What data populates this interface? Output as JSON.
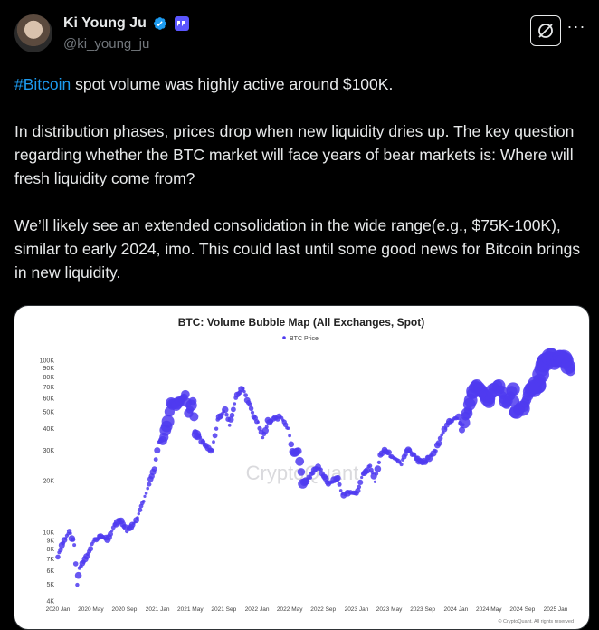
{
  "author": {
    "name": "Ki Young Ju",
    "handle": "@ki_young_ju",
    "verified_color": "#1d9bf0",
    "affiliate_badge_color": "#5b56ff"
  },
  "actions": {
    "grok_icon": "grok-icon",
    "more_icon": "more-icon",
    "more_label": "···"
  },
  "tweet": {
    "hashtag": "#Bitcoin",
    "line1_rest": " spot volume was highly active around $100K.",
    "para2": "In distribution phases, prices drop when new liquidity dries up. The key question regarding whether the BTC market will face years of bear markets is: Where will fresh liquidity come from?",
    "para3": "We’ll likely see an extended consolidation in the wide range(e.g., $75K-100K), similar to early 2024, imo. This could last until some good news for Bitcoin brings in new liquidity."
  },
  "chart_data": {
    "type": "scatter",
    "title": "BTC: Volume Bubble Map (All Exchanges, Spot)",
    "legend": "BTC Price",
    "legend_position": "top-center",
    "watermark": "CryptoQuant",
    "footer": "© CryptoQuant. All rights reserved",
    "y_scale": "log",
    "ylim": [
      4000,
      110000
    ],
    "y_ticks": [
      {
        "v": 100000,
        "label": "100K"
      },
      {
        "v": 90000,
        "label": "90K"
      },
      {
        "v": 80000,
        "label": "80K"
      },
      {
        "v": 70000,
        "label": "70K"
      },
      {
        "v": 60000,
        "label": "60K"
      },
      {
        "v": 50000,
        "label": "50K"
      },
      {
        "v": 40000,
        "label": "40K"
      },
      {
        "v": 30000,
        "label": "30K"
      },
      {
        "v": 20000,
        "label": "20K"
      },
      {
        "v": 10000,
        "label": "10K"
      },
      {
        "v": 9000,
        "label": "9K"
      },
      {
        "v": 8000,
        "label": "8K"
      },
      {
        "v": 7000,
        "label": "7K"
      },
      {
        "v": 6000,
        "label": "6K"
      },
      {
        "v": 5000,
        "label": "5K"
      },
      {
        "v": 4000,
        "label": "4K"
      }
    ],
    "xlim": [
      "2020-01-01",
      "2025-03-15"
    ],
    "x_ticks": [
      "2020 Jan",
      "2020 May",
      "2020 Sep",
      "2021 Jan",
      "2021 May",
      "2021 Sep",
      "2022 Jan",
      "2022 May",
      "2022 Sep",
      "2023 Jan",
      "2023 May",
      "2023 Sep",
      "2024 Jan",
      "2024 May",
      "2024 Sep",
      "2025 Jan"
    ],
    "x_tick_dates": [
      "2020-01-01",
      "2020-05-01",
      "2020-09-01",
      "2021-01-01",
      "2021-05-01",
      "2021-09-01",
      "2022-01-01",
      "2022-05-01",
      "2022-09-01",
      "2023-01-01",
      "2023-05-01",
      "2023-09-01",
      "2024-01-01",
      "2024-05-01",
      "2024-09-01",
      "2025-01-01"
    ],
    "grid": false,
    "color": "#4f3bf0",
    "series": [
      {
        "name": "BTC Price",
        "points": [
          [
            "2020-01-01",
            7200
          ],
          [
            "2020-01-20",
            8700
          ],
          [
            "2020-02-12",
            10200
          ],
          [
            "2020-03-01",
            8600
          ],
          [
            "2020-03-12",
            5000
          ],
          [
            "2020-03-20",
            6200
          ],
          [
            "2020-04-10",
            6900
          ],
          [
            "2020-05-10",
            8800
          ],
          [
            "2020-06-01",
            9500
          ],
          [
            "2020-07-01",
            9200
          ],
          [
            "2020-07-28",
            11000
          ],
          [
            "2020-08-15",
            11800
          ],
          [
            "2020-09-10",
            10300
          ],
          [
            "2020-10-10",
            11300
          ],
          [
            "2020-10-28",
            13400
          ],
          [
            "2020-11-15",
            16000
          ],
          [
            "2020-12-01",
            19000
          ],
          [
            "2020-12-20",
            23500
          ],
          [
            "2021-01-05",
            33000
          ],
          [
            "2021-01-20",
            34000
          ],
          [
            "2021-02-08",
            44000
          ],
          [
            "2021-02-20",
            57000
          ],
          [
            "2021-03-10",
            55000
          ],
          [
            "2021-04-13",
            63000
          ],
          [
            "2021-04-25",
            50000
          ],
          [
            "2021-05-10",
            57000
          ],
          [
            "2021-05-19",
            38000
          ],
          [
            "2021-06-01",
            36000
          ],
          [
            "2021-06-22",
            32000
          ],
          [
            "2021-07-20",
            30000
          ],
          [
            "2021-08-10",
            45000
          ],
          [
            "2021-09-06",
            52000
          ],
          [
            "2021-09-22",
            42000
          ],
          [
            "2021-10-20",
            64000
          ],
          [
            "2021-11-10",
            68000
          ],
          [
            "2021-12-01",
            57000
          ],
          [
            "2021-12-20",
            47000
          ],
          [
            "2022-01-05",
            43000
          ],
          [
            "2022-01-22",
            35000
          ],
          [
            "2022-02-10",
            44000
          ],
          [
            "2022-03-28",
            47000
          ],
          [
            "2022-04-25",
            40000
          ],
          [
            "2022-05-12",
            29000
          ],
          [
            "2022-06-01",
            30000
          ],
          [
            "2022-06-18",
            19000
          ],
          [
            "2022-07-15",
            21000
          ],
          [
            "2022-08-13",
            24500
          ],
          [
            "2022-09-20",
            19000
          ],
          [
            "2022-10-25",
            20500
          ],
          [
            "2022-11-10",
            16500
          ],
          [
            "2022-12-15",
            17000
          ],
          [
            "2023-01-01",
            16600
          ],
          [
            "2023-01-20",
            21000
          ],
          [
            "2023-02-20",
            24500
          ],
          [
            "2023-03-10",
            20000
          ],
          [
            "2023-03-30",
            28000
          ],
          [
            "2023-04-14",
            30500
          ],
          [
            "2023-05-10",
            27500
          ],
          [
            "2023-06-15",
            25000
          ],
          [
            "2023-07-10",
            30500
          ],
          [
            "2023-08-18",
            26000
          ],
          [
            "2023-09-10",
            25800
          ],
          [
            "2023-10-20",
            30000
          ],
          [
            "2023-11-10",
            37000
          ],
          [
            "2023-12-08",
            44000
          ],
          [
            "2024-01-11",
            46500
          ],
          [
            "2024-01-23",
            39500
          ],
          [
            "2024-02-15",
            52000
          ],
          [
            "2024-03-05",
            67000
          ],
          [
            "2024-03-13",
            73000
          ],
          [
            "2024-04-15",
            63000
          ],
          [
            "2024-05-01",
            57000
          ],
          [
            "2024-05-21",
            70000
          ],
          [
            "2024-06-07",
            71000
          ],
          [
            "2024-07-05",
            55000
          ],
          [
            "2024-07-29",
            69000
          ],
          [
            "2024-08-05",
            50000
          ],
          [
            "2024-09-06",
            53000
          ],
          [
            "2024-09-27",
            66000
          ],
          [
            "2024-10-29",
            72000
          ],
          [
            "2024-11-12",
            88000
          ],
          [
            "2024-11-22",
            98000
          ],
          [
            "2024-12-17",
            106000
          ],
          [
            "2025-01-02",
            96000
          ],
          [
            "2025-01-20",
            105000
          ],
          [
            "2025-02-10",
            97000
          ],
          [
            "2025-02-25",
            86000
          ]
        ]
      }
    ]
  }
}
